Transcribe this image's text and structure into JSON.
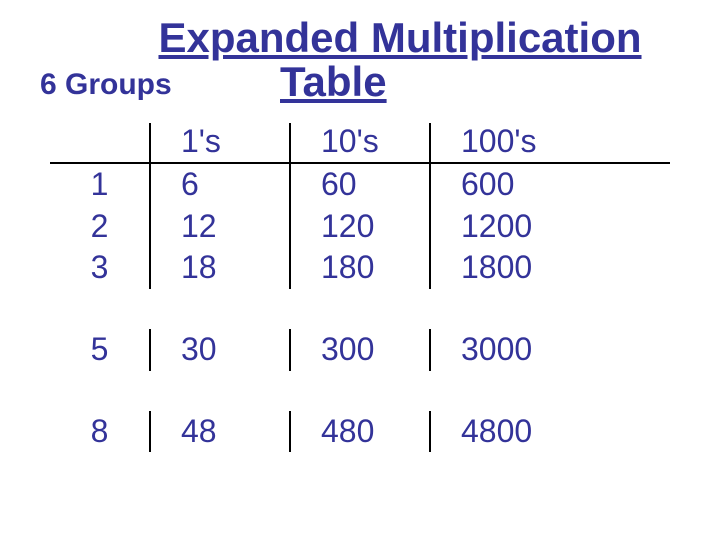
{
  "title": {
    "line1": "Expanded Multiplication",
    "line2": "Table"
  },
  "subtitle": "6 Groups",
  "table": {
    "type": "table",
    "title_color": "#333399",
    "text_color": "#333399",
    "border_color": "#000000",
    "background_color": "#ffffff",
    "title_fontsize": 42,
    "subtitle_fontsize": 30,
    "cell_fontsize": 32,
    "font_family": "Verdana",
    "columns": [
      "",
      "1's",
      "10's",
      "100's"
    ],
    "sections": [
      {
        "rows": [
          [
            "1",
            "6",
            "60",
            "600"
          ],
          [
            "2",
            "12",
            "120",
            "1200"
          ],
          [
            "3",
            "18",
            "180",
            "1800"
          ]
        ]
      },
      {
        "rows": [
          [
            "5",
            "30",
            "300",
            "3000"
          ]
        ]
      },
      {
        "rows": [
          [
            "8",
            "48",
            "480",
            "4800"
          ]
        ]
      }
    ]
  }
}
